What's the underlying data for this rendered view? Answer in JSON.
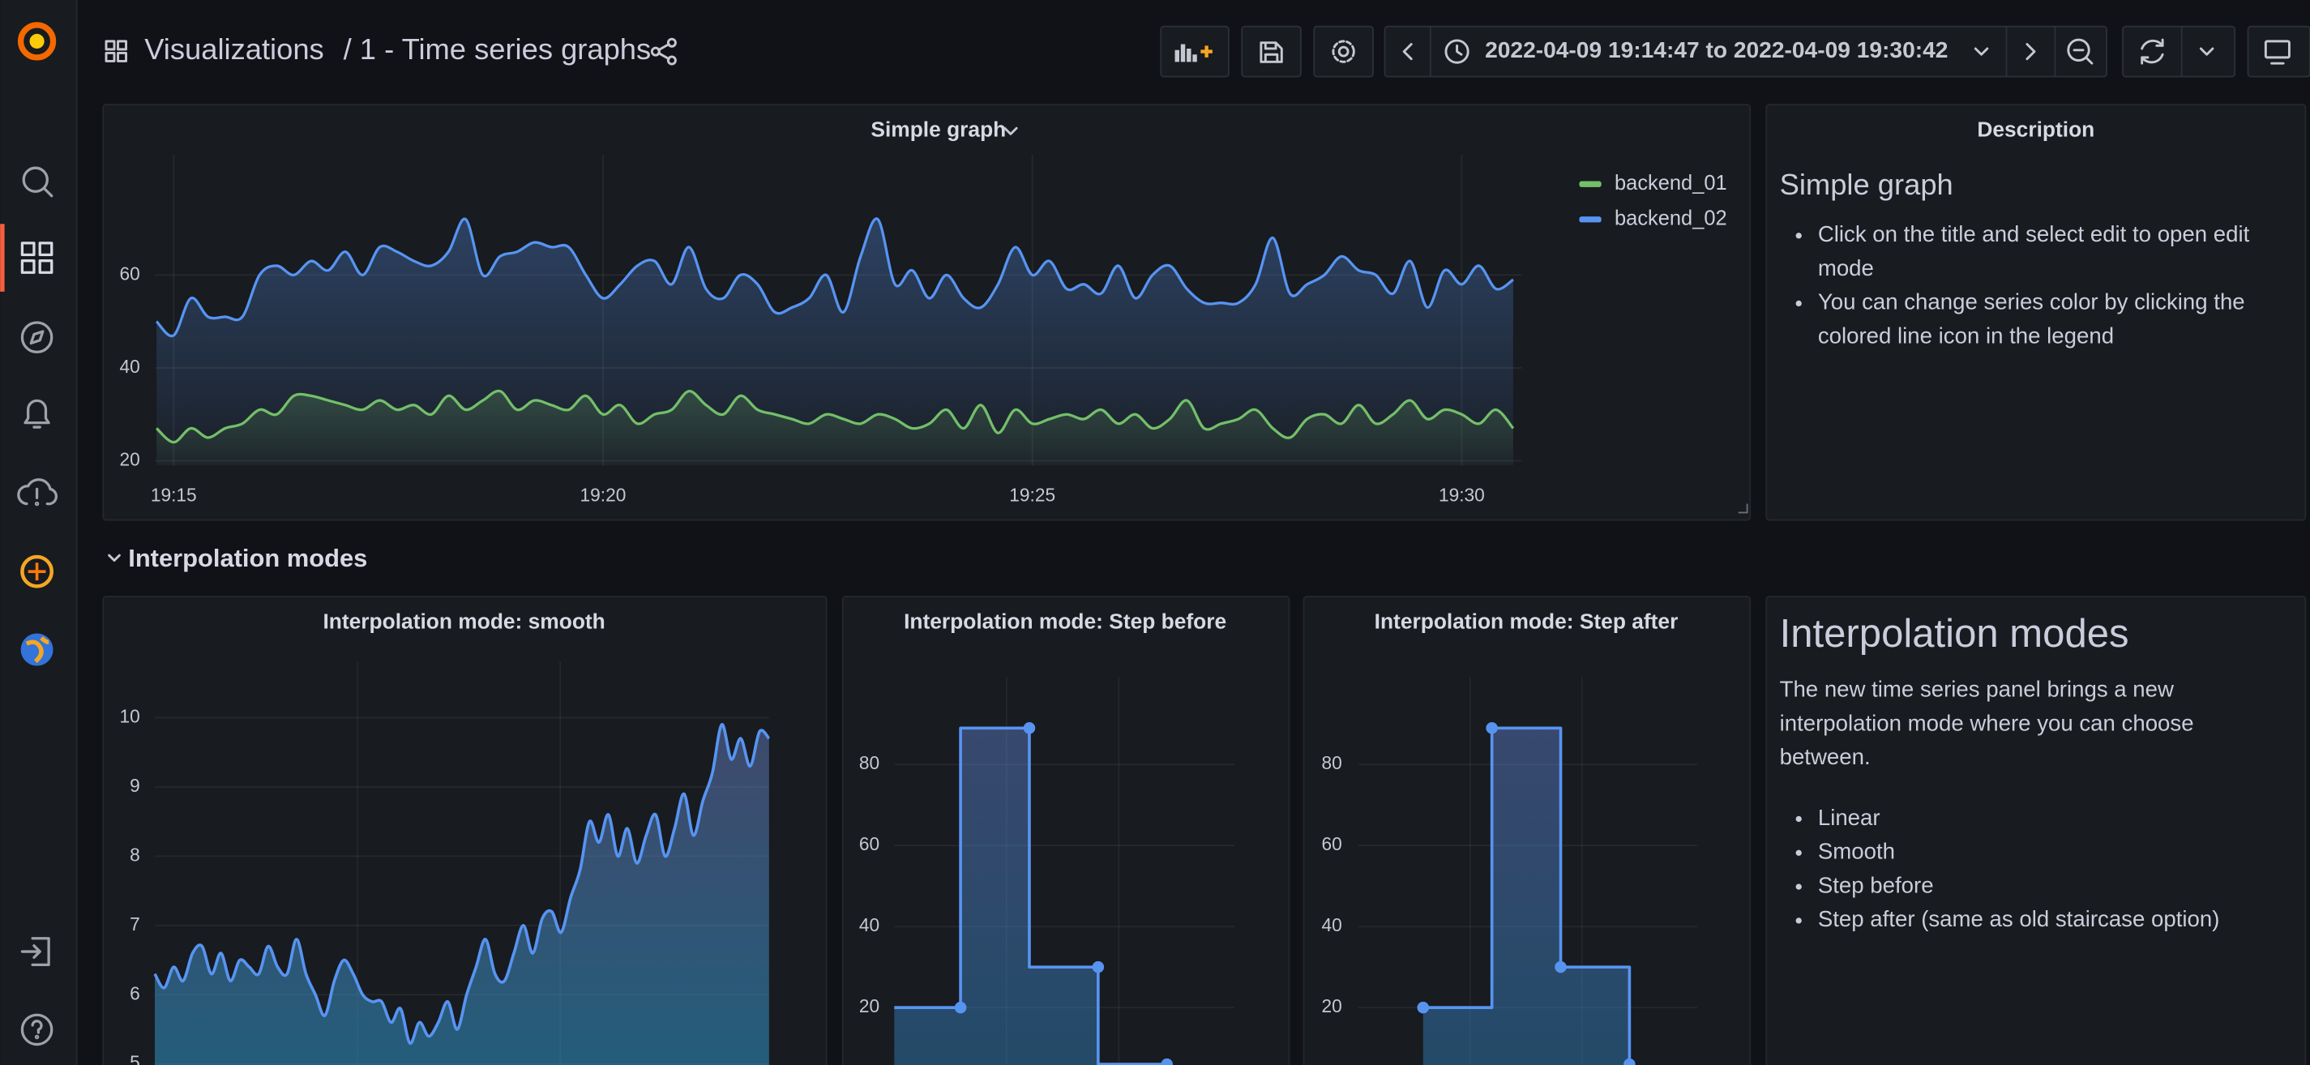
{
  "header": {
    "breadcrumb": "Visualizations",
    "dashboard": "/ 1 - Time series graphs",
    "time_range": "2022-04-09 19:14:47 to 2022-04-09 19:30:42"
  },
  "description": {
    "title": "Description",
    "heading": "Simple graph",
    "items": [
      "Click on the title and select edit to open edit mode",
      "You can change series color by clicking the colored line icon in the legend"
    ]
  },
  "row": {
    "title": "Interpolation modes"
  },
  "interpolation_text": {
    "heading": "Interpolation modes",
    "paragraph": "The new time series panel brings a new interpolation mode where you can choose between.",
    "items": [
      "Linear",
      "Smooth",
      "Step before",
      "Step after (same as old staircase option)"
    ]
  },
  "chart_data": [
    {
      "type": "line",
      "title": "Simple graph",
      "legend": "top-right",
      "grid": true,
      "x": [
        14.8,
        15.0,
        15.2,
        15.4,
        15.6,
        15.8,
        16.0,
        16.2,
        16.4,
        16.6,
        16.8,
        17.0,
        17.2,
        17.4,
        17.6,
        17.8,
        18.0,
        18.2,
        18.4,
        18.6,
        18.8,
        19.0,
        19.2,
        19.4,
        19.6,
        19.8,
        20.0,
        20.2,
        20.4,
        20.6,
        20.8,
        21.0,
        21.2,
        21.4,
        21.6,
        21.8,
        22.0,
        22.2,
        22.4,
        22.6,
        22.8,
        23.0,
        23.2,
        23.4,
        23.6,
        23.8,
        24.0,
        24.2,
        24.4,
        24.6,
        24.8,
        25.0,
        25.2,
        25.4,
        25.6,
        25.8,
        26.0,
        26.2,
        26.4,
        26.6,
        26.8,
        27.0,
        27.2,
        27.4,
        27.6,
        27.8,
        28.0,
        28.2,
        28.4,
        28.6,
        28.8,
        29.0,
        29.2,
        29.4,
        29.6,
        29.8,
        30.0,
        30.2,
        30.4,
        30.6
      ],
      "xlim": [
        14.78,
        30.7
      ],
      "xticks": [
        {
          "value": 15,
          "label": "19:15"
        },
        {
          "value": 20,
          "label": "19:20"
        },
        {
          "value": 25,
          "label": "19:25"
        },
        {
          "value": 30,
          "label": "19:30"
        }
      ],
      "ylim": [
        19,
        84
      ],
      "yticks": [
        20,
        40,
        60
      ],
      "series": [
        {
          "name": "backend_01",
          "color": "#73bf69",
          "values": [
            27,
            24,
            27,
            25,
            27,
            28,
            31,
            30,
            34,
            34,
            33,
            32,
            31,
            33,
            31,
            32,
            30,
            34,
            31,
            33,
            35,
            31,
            33,
            32,
            31,
            34,
            30,
            32,
            28,
            30,
            31,
            35,
            32,
            30,
            34,
            31,
            30,
            29,
            28,
            30,
            29,
            28,
            30,
            29,
            27,
            28,
            31,
            27,
            32,
            26,
            31,
            28,
            29,
            30,
            29,
            31,
            28,
            30,
            27,
            29,
            33,
            27,
            28,
            29,
            31,
            27,
            25,
            29,
            30,
            28,
            32,
            28,
            30,
            33,
            29,
            31,
            30,
            28,
            31,
            27
          ]
        },
        {
          "name": "backend_02",
          "color": "#5794f2",
          "values": [
            50,
            47,
            55,
            51,
            51,
            51,
            60,
            62,
            60,
            63,
            61,
            65,
            60,
            66,
            65,
            63,
            62,
            65,
            72,
            60,
            64,
            65,
            67,
            66,
            66,
            60,
            55,
            58,
            62,
            63,
            58,
            66,
            57,
            55,
            60,
            58,
            52,
            53,
            55,
            60,
            52,
            64,
            72,
            58,
            61,
            55,
            60,
            55,
            53,
            58,
            66,
            60,
            63,
            57,
            58,
            56,
            62,
            55,
            60,
            62,
            57,
            54,
            54,
            54,
            58,
            68,
            56,
            58,
            60,
            64,
            61,
            60,
            56,
            63,
            53,
            61,
            58,
            62,
            57,
            59
          ]
        }
      ]
    },
    {
      "type": "line",
      "interpolation": "smooth",
      "title": "Interpolation mode: smooth",
      "grid": true,
      "ylim": [
        4.9,
        10.6
      ],
      "yticks": [
        5,
        6,
        7,
        8,
        9,
        10
      ],
      "series": [
        {
          "color": "#5794f2",
          "values": [
            6.3,
            6.1,
            6.4,
            6.2,
            6.6,
            6.7,
            6.3,
            6.6,
            6.2,
            6.5,
            6.4,
            6.3,
            6.7,
            6.4,
            6.3,
            6.8,
            6.3,
            6.0,
            5.7,
            6.2,
            6.5,
            6.3,
            6.0,
            5.9,
            5.9,
            5.6,
            5.8,
            5.3,
            5.6,
            5.4,
            5.6,
            5.9,
            5.5,
            6.0,
            6.4,
            6.8,
            6.3,
            6.2,
            6.6,
            7.0,
            6.6,
            7.1,
            7.2,
            6.9,
            7.4,
            7.8,
            8.5,
            8.2,
            8.6,
            8.0,
            8.4,
            7.9,
            8.3,
            8.6,
            8.0,
            8.4,
            8.9,
            8.3,
            8.8,
            9.2,
            9.9,
            9.4,
            9.7,
            9.3,
            9.8,
            9.7
          ]
        }
      ]
    },
    {
      "type": "line",
      "interpolation": "stepBefore",
      "title": "Interpolation mode: Step before",
      "grid": true,
      "ylim": [
        0,
        98
      ],
      "yticks": [
        20,
        40,
        60,
        80
      ],
      "series": [
        {
          "color": "#5794f2",
          "values": [
            20,
            89,
            30,
            6
          ]
        }
      ]
    },
    {
      "type": "line",
      "interpolation": "stepAfter",
      "title": "Interpolation mode: Step after",
      "grid": true,
      "ylim": [
        0,
        98
      ],
      "yticks": [
        20,
        40,
        60,
        80
      ],
      "series": [
        {
          "color": "#5794f2",
          "values": [
            20,
            89,
            30,
            6
          ]
        }
      ]
    }
  ]
}
